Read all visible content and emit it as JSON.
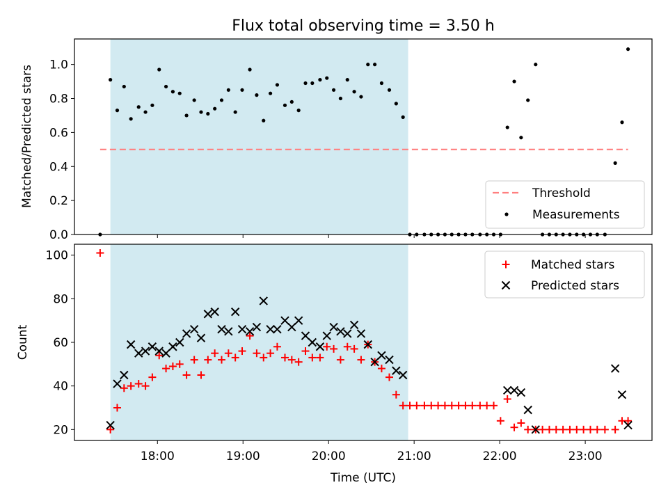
{
  "chart_data": [
    {
      "type": "scatter",
      "title": "Flux total observing time = 3.50 h",
      "xlabel": "",
      "ylabel": "Matched/Predicted stars",
      "ylim": [
        0,
        1.15
      ],
      "yticks": [
        "0.0",
        "0.2",
        "0.4",
        "0.6",
        "0.8",
        "1.0"
      ],
      "grid": false,
      "legend_position": "lower right",
      "shaded_interval_utc_hours": [
        17.45,
        20.93
      ],
      "shade_color": "#add8e6",
      "threshold": {
        "name": "Threshold",
        "value": 0.5,
        "x_range": [
          17.33,
          23.5
        ],
        "color": "#ff7f7f"
      },
      "series": [
        {
          "name": "Measurements",
          "color": "#000000",
          "x": [
            17.33,
            17.45,
            17.53,
            17.61,
            17.69,
            17.78,
            17.86,
            17.94,
            18.02,
            18.1,
            18.18,
            18.26,
            18.34,
            18.43,
            18.51,
            18.59,
            18.67,
            18.75,
            18.83,
            18.91,
            18.99,
            19.08,
            19.16,
            19.24,
            19.32,
            19.4,
            19.49,
            19.57,
            19.65,
            19.73,
            19.81,
            19.9,
            19.98,
            20.06,
            20.14,
            20.22,
            20.3,
            20.38,
            20.46,
            20.54,
            20.62,
            20.71,
            20.79,
            20.87,
            20.95,
            21.03,
            21.12,
            21.2,
            21.28,
            21.36,
            21.44,
            21.52,
            21.6,
            21.68,
            21.77,
            21.85,
            21.93,
            22.01,
            22.09,
            22.17,
            22.25,
            22.33,
            22.42,
            22.5,
            22.58,
            22.66,
            22.74,
            22.82,
            22.9,
            22.98,
            23.06,
            23.14,
            23.23,
            23.35,
            23.43,
            23.5
          ],
          "y": [
            0,
            0.91,
            0.73,
            0.87,
            0.68,
            0.75,
            0.72,
            0.76,
            0.97,
            0.87,
            0.84,
            0.83,
            0.7,
            0.79,
            0.72,
            0.71,
            0.74,
            0.79,
            0.85,
            0.72,
            0.85,
            0.97,
            0.82,
            0.67,
            0.83,
            0.88,
            0.76,
            0.78,
            0.73,
            0.89,
            0.89,
            0.91,
            0.92,
            0.85,
            0.8,
            0.91,
            0.84,
            0.81,
            1.0,
            1.0,
            0.89,
            0.85,
            0.77,
            0.69,
            0,
            0,
            0,
            0,
            0,
            0,
            0,
            0,
            0,
            0,
            0,
            0,
            0,
            0,
            0.63,
            0.9,
            0.57,
            0.79,
            1.0,
            0,
            0,
            0,
            0,
            0,
            0,
            0,
            0,
            0,
            0,
            0.42,
            0.66,
            1.09
          ]
        }
      ]
    },
    {
      "type": "scatter",
      "title": "",
      "xlabel": "Time (UTC)",
      "ylabel": "Count",
      "ylim": [
        15,
        105
      ],
      "yticks": [
        "20",
        "40",
        "60",
        "80",
        "100"
      ],
      "xlim": [
        17.03,
        23.78
      ],
      "xticks": [
        "18:00",
        "19:00",
        "20:00",
        "21:00",
        "22:00",
        "23:00"
      ],
      "grid": false,
      "legend_position": "upper right",
      "series": [
        {
          "name": "Matched stars",
          "color": "#ff0000",
          "marker": "plus",
          "x": [
            17.33,
            17.45,
            17.53,
            17.61,
            17.69,
            17.78,
            17.86,
            17.94,
            18.02,
            18.1,
            18.18,
            18.26,
            18.34,
            18.43,
            18.51,
            18.59,
            18.67,
            18.75,
            18.83,
            18.91,
            18.99,
            19.08,
            19.16,
            19.24,
            19.32,
            19.4,
            19.49,
            19.57,
            19.65,
            19.73,
            19.81,
            19.9,
            19.98,
            20.06,
            20.14,
            20.22,
            20.3,
            20.38,
            20.46,
            20.54,
            20.62,
            20.71,
            20.79,
            20.87,
            20.95,
            21.03,
            21.12,
            21.2,
            21.28,
            21.36,
            21.44,
            21.52,
            21.6,
            21.68,
            21.77,
            21.85,
            21.93,
            22.01,
            22.09,
            22.17,
            22.25,
            22.33,
            22.42,
            22.5,
            22.58,
            22.66,
            22.74,
            22.82,
            22.9,
            22.98,
            23.06,
            23.14,
            23.23,
            23.35,
            23.43,
            23.5
          ],
          "y": [
            101,
            20,
            30,
            39,
            40,
            41,
            40,
            44,
            54,
            48,
            49,
            50,
            45,
            52,
            45,
            52,
            55,
            52,
            55,
            53,
            56,
            63,
            55,
            53,
            55,
            58,
            53,
            52,
            51,
            56,
            53,
            53,
            58,
            57,
            52,
            58,
            57,
            52,
            59,
            51,
            48,
            44,
            36,
            31,
            31,
            31,
            31,
            31,
            31,
            31,
            31,
            31,
            31,
            31,
            31,
            31,
            31,
            24,
            34,
            21,
            23,
            20,
            20,
            20,
            20,
            20,
            20,
            20,
            20,
            20,
            20,
            20,
            20,
            20,
            24,
            24
          ]
        },
        {
          "name": "Predicted stars",
          "color": "#000000",
          "marker": "x",
          "x": [
            17.45,
            17.53,
            17.61,
            17.69,
            17.78,
            17.86,
            17.94,
            18.02,
            18.1,
            18.18,
            18.26,
            18.34,
            18.43,
            18.51,
            18.59,
            18.67,
            18.75,
            18.83,
            18.91,
            18.99,
            19.08,
            19.16,
            19.24,
            19.32,
            19.4,
            19.49,
            19.57,
            19.65,
            19.73,
            19.81,
            19.9,
            19.98,
            20.06,
            20.14,
            20.22,
            20.3,
            20.38,
            20.46,
            20.54,
            20.62,
            20.71,
            20.79,
            20.87,
            22.09,
            22.17,
            22.25,
            22.33,
            22.42,
            23.35,
            23.43,
            23.5
          ],
          "y": [
            22,
            41,
            45,
            59,
            55,
            56,
            58,
            56,
            55,
            58,
            60,
            64,
            66,
            62,
            73,
            74,
            66,
            65,
            74,
            66,
            65,
            67,
            79,
            66,
            66,
            70,
            67,
            70,
            63,
            60,
            58,
            63,
            67,
            65,
            64,
            68,
            64,
            59,
            51,
            54,
            52,
            47,
            45,
            38,
            38,
            37,
            29,
            20,
            48,
            36,
            22
          ]
        }
      ]
    }
  ]
}
